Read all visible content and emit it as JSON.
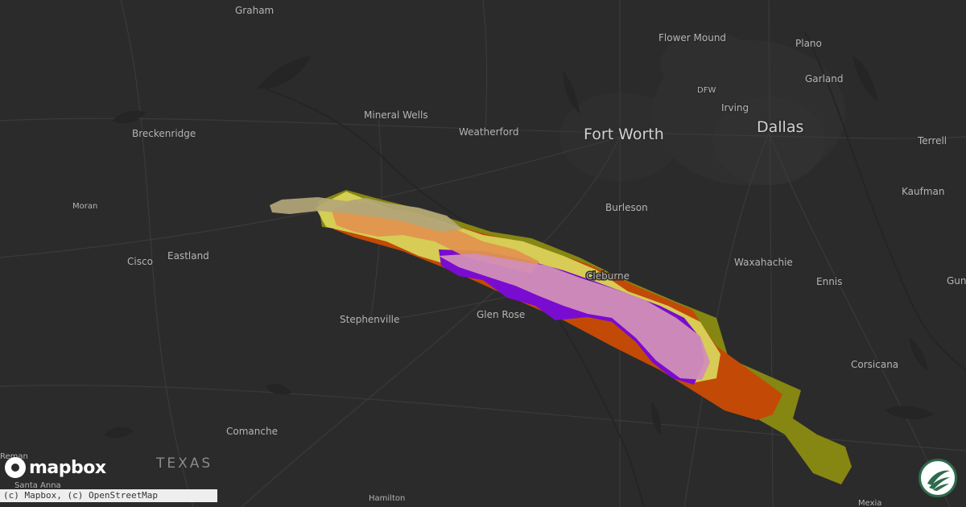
{
  "map": {
    "state_label": "TEXAS",
    "basemap_color": "#2b2b2b",
    "cities": [
      {
        "id": "graham",
        "name": "Graham"
      },
      {
        "id": "flower-mound",
        "name": "Flower Mound"
      },
      {
        "id": "plano",
        "name": "Plano"
      },
      {
        "id": "garland",
        "name": "Garland"
      },
      {
        "id": "dfw",
        "name": "DFW"
      },
      {
        "id": "irving",
        "name": "Irving"
      },
      {
        "id": "dallas",
        "name": "Dallas"
      },
      {
        "id": "fort-worth",
        "name": "Fort Worth"
      },
      {
        "id": "mineral-wells",
        "name": "Mineral Wells"
      },
      {
        "id": "weatherford",
        "name": "Weatherford"
      },
      {
        "id": "breckenridge",
        "name": "Breckenridge"
      },
      {
        "id": "terrell",
        "name": "Terrell"
      },
      {
        "id": "kaufman",
        "name": "Kaufman"
      },
      {
        "id": "moran",
        "name": "Moran"
      },
      {
        "id": "burleson",
        "name": "Burleson"
      },
      {
        "id": "cisco",
        "name": "Cisco"
      },
      {
        "id": "eastland",
        "name": "Eastland"
      },
      {
        "id": "cleburne",
        "name": "Cleburne"
      },
      {
        "id": "waxahachie",
        "name": "Waxahachie"
      },
      {
        "id": "ennis",
        "name": "Ennis"
      },
      {
        "id": "gun",
        "name": "Gun"
      },
      {
        "id": "glen-rose",
        "name": "Glen Rose"
      },
      {
        "id": "stephenville",
        "name": "Stephenville"
      },
      {
        "id": "corsicana",
        "name": "Corsicana"
      },
      {
        "id": "comanche",
        "name": "Comanche"
      },
      {
        "id": "reman",
        "name": "Reman"
      },
      {
        "id": "santa-anna",
        "name": "Santa Anna"
      },
      {
        "id": "hamilton",
        "name": "Hamilton"
      },
      {
        "id": "mexia",
        "name": "Mexia"
      }
    ],
    "swath_colors": {
      "outer_olive": "#8e8e10",
      "yellow": "#d8d35a",
      "orange_red": "#c24a06",
      "orange": "#e2944e",
      "purple": "#7a0bd0",
      "pink": "#d18fb6",
      "tan": "#b3a778"
    }
  },
  "branding": {
    "logo_text": "mapbox",
    "attribution": "(c) Mapbox, (c) OpenStreetMap"
  }
}
